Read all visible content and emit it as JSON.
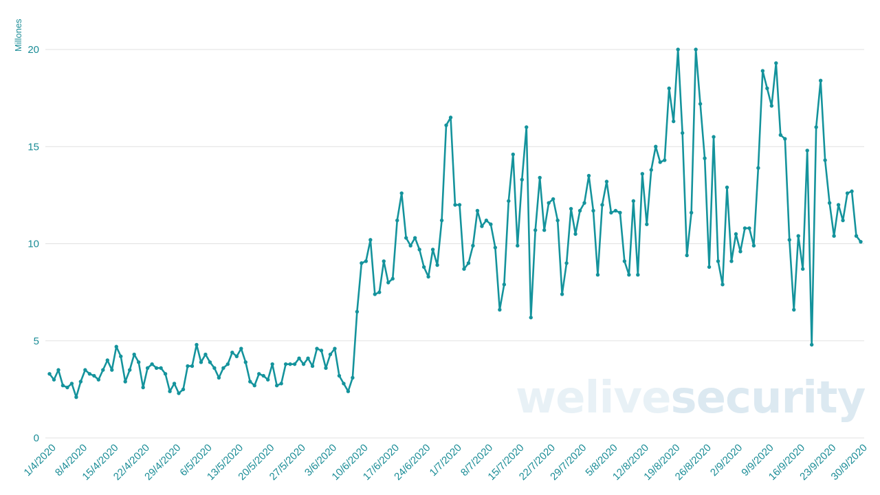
{
  "chart_data": {
    "type": "line",
    "ylabel": "Millones",
    "xlabel": "",
    "title": "",
    "ylim": [
      0,
      20
    ],
    "yticks": [
      0,
      5,
      10,
      15,
      20
    ],
    "grid": true,
    "legend": "none",
    "x_tick_labels": [
      "1/4/2020",
      "8/4/2020",
      "15/4/2020",
      "22/4/2020",
      "29/4/2020",
      "6/5/2020",
      "13/5/2020",
      "20/5/2020",
      "27/5/2020",
      "3/6/2020",
      "10/6/2020",
      "17/6/2020",
      "24/6/2020",
      "1/7/2020",
      "8/7/2020",
      "15/7/2020",
      "22/7/2020",
      "29/7/2020",
      "5/8/2020",
      "12/8/2020",
      "19/8/2020",
      "26/8/2020",
      "2/9/2020",
      "9/9/2020",
      "16/9/2020",
      "23/9/2020",
      "30/9/2020"
    ],
    "x_start": "1/4/2020",
    "x_end": "30/9/2020",
    "series": [
      {
        "color": "#14939c",
        "values": [
          3.3,
          3.0,
          3.5,
          2.7,
          2.6,
          2.8,
          2.1,
          2.9,
          3.5,
          3.3,
          3.2,
          3.0,
          3.5,
          4.0,
          3.5,
          4.7,
          4.2,
          2.9,
          3.5,
          4.3,
          3.9,
          2.6,
          3.6,
          3.8,
          3.6,
          3.6,
          3.3,
          2.4,
          2.8,
          2.3,
          2.5,
          3.7,
          3.7,
          4.8,
          3.9,
          4.3,
          3.9,
          3.6,
          3.1,
          3.6,
          3.8,
          4.4,
          4.2,
          4.6,
          3.9,
          2.9,
          2.7,
          3.3,
          3.2,
          3.0,
          3.8,
          2.7,
          2.8,
          3.8,
          3.8,
          3.8,
          4.1,
          3.8,
          4.1,
          3.7,
          4.6,
          4.5,
          3.6,
          4.3,
          4.6,
          3.2,
          2.8,
          2.4,
          3.1,
          6.5,
          9.0,
          9.1,
          10.2,
          7.4,
          7.5,
          9.1,
          8.0,
          8.2,
          11.2,
          12.6,
          10.3,
          9.9,
          10.3,
          9.7,
          8.8,
          8.3,
          9.7,
          8.9,
          11.2,
          16.1,
          16.5,
          12.0,
          12.0,
          8.7,
          9.0,
          9.9,
          11.7,
          10.9,
          11.2,
          11.0,
          9.8,
          6.6,
          7.9,
          12.2,
          14.6,
          9.9,
          13.3,
          16.0,
          6.2,
          10.7,
          13.4,
          10.7,
          12.1,
          12.3,
          11.2,
          7.4,
          9.0,
          11.8,
          10.5,
          11.7,
          12.1,
          13.5,
          11.7,
          8.4,
          12.0,
          13.2,
          11.6,
          11.7,
          11.6,
          9.1,
          8.4,
          12.2,
          8.4,
          13.6,
          11.0,
          13.8,
          15.0,
          14.2,
          14.3,
          18.0,
          16.3,
          20.0,
          15.7,
          9.4,
          11.6,
          20.0,
          17.2,
          14.4,
          8.8,
          15.5,
          9.1,
          7.9,
          12.9,
          9.1,
          10.5,
          9.6,
          10.8,
          10.8,
          9.9,
          13.9,
          18.9,
          18.0,
          17.1,
          19.3,
          15.6,
          15.4,
          10.2,
          6.6,
          10.4,
          8.7,
          14.8,
          4.8,
          16.0,
          18.4,
          14.3,
          12.1,
          10.4,
          12.0,
          11.2,
          12.6,
          12.7,
          10.4,
          10.1
        ]
      }
    ]
  },
  "watermark": {
    "part1": "welive",
    "part2": "security",
    "color1": "#e8f1f6",
    "color2": "#dce9f1"
  }
}
